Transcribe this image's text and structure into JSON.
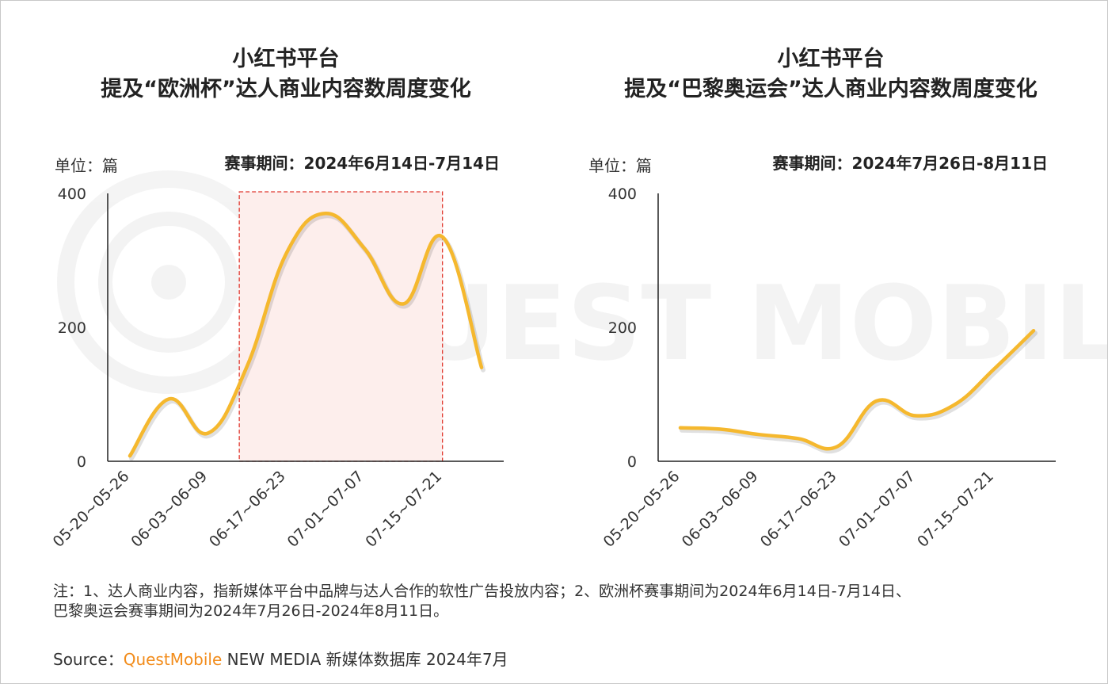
{
  "chart_data": [
    {
      "type": "line",
      "title": "小红书平台",
      "subtitle": "提及“欧洲杯”达人商业内容数周度变化",
      "unit_label": "单位：篇",
      "period_label": "赛事期间：2024年6月14日-7月14日",
      "ylim": [
        0,
        400
      ],
      "yticks": [
        0,
        200,
        400
      ],
      "x": [
        0,
        1,
        2,
        3,
        4,
        5,
        6,
        7,
        8,
        9
      ],
      "xtick_positions": [
        0,
        2,
        4,
        6,
        8
      ],
      "xtick_labels": [
        "05-20~05-26",
        "06-03~06-09",
        "06-17~06-23",
        "07-01~07-07",
        "07-15~07-21"
      ],
      "series": [
        {
          "values": [
            8,
            93,
            42,
            142,
            310,
            370,
            318,
            235,
            335,
            140
          ]
        }
      ],
      "highlight": {
        "from": 2.8,
        "to": 8.0
      },
      "grid": false,
      "color": "#F5B82E",
      "highlight_color": "#FDEEEC",
      "highlight_border": "#E0372E"
    },
    {
      "type": "line",
      "title": "小红书平台",
      "subtitle": "提及“巴黎奥运会”达人商业内容数周度变化",
      "unit_label": "单位：篇",
      "period_label": "赛事期间：2024年7月26日-8月11日",
      "ylim": [
        0,
        400
      ],
      "yticks": [
        0,
        200,
        400
      ],
      "x": [
        0,
        1,
        2,
        3,
        4,
        5,
        6,
        7,
        8,
        9
      ],
      "xtick_positions": [
        0,
        2,
        4,
        6,
        8
      ],
      "xtick_labels": [
        "05-20~05-26",
        "06-03~06-09",
        "06-17~06-23",
        "07-01~07-07",
        "07-15~07-21"
      ],
      "series": [
        {
          "values": [
            50,
            48,
            40,
            34,
            22,
            90,
            68,
            85,
            138,
            195
          ]
        }
      ],
      "grid": false,
      "color": "#F5B82E"
    }
  ],
  "note": {
    "line1": "注：1、达人商业内容，指新媒体平台中品牌与达人合作的软性广告投放内容；2、欧洲杯赛事期间为2024年6月14日-7月14日、",
    "line2": "巴黎奥运会赛事期间为2024年7月26日-2024年8月11日。"
  },
  "source": {
    "prefix": "Source：",
    "brand": "QuestMobile",
    "rest": " NEW MEDIA 新媒体数据库 2024年7月"
  },
  "watermark": "QUEST MOBILE"
}
